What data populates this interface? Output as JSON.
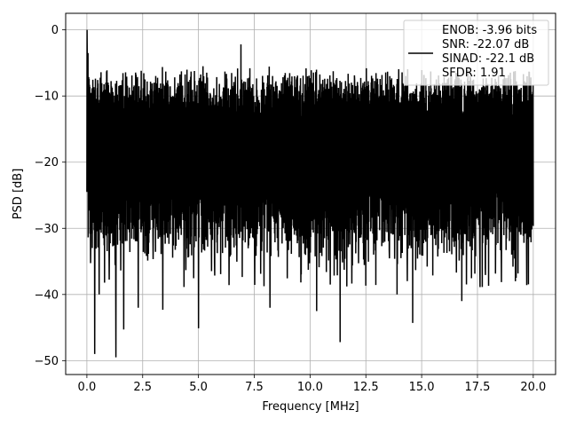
{
  "chart_data": {
    "type": "line",
    "title": "",
    "xlabel": "Frequency [MHz]",
    "ylabel": "PSD [dB]",
    "xlim": [
      -0.95,
      21.0
    ],
    "ylim": [
      -52.1,
      2.5
    ],
    "x_ticks": [
      0.0,
      2.5,
      5.0,
      7.5,
      10.0,
      12.5,
      15.0,
      17.5,
      20.0
    ],
    "x_tick_labels": [
      "0.0",
      "2.5",
      "5.0",
      "7.5",
      "10.0",
      "12.5",
      "15.0",
      "17.5",
      "20.0"
    ],
    "y_ticks": [
      0,
      -10,
      -20,
      -30,
      -40,
      -50
    ],
    "y_tick_labels": [
      "0",
      "−10",
      "−20",
      "−30",
      "−40",
      "−50"
    ],
    "grid": true,
    "legend_position": "top-right",
    "series": [
      {
        "color": "#000000",
        "x_range": [
          0.0,
          20.0
        ],
        "peak": {
          "x": 0.02,
          "y": 0.0
        },
        "band_upper_db": [
          -7,
          -13
        ],
        "band_lower_db": [
          -24,
          -33
        ],
        "notable_dips": [
          {
            "x": 0.35,
            "y": -49.0
          },
          {
            "x": 1.3,
            "y": -49.5
          },
          {
            "x": 1.65,
            "y": -45.3
          },
          {
            "x": 5.0,
            "y": -45.1
          },
          {
            "x": 11.35,
            "y": -47.2
          },
          {
            "x": 10.3,
            "y": -42.5
          },
          {
            "x": 14.6,
            "y": -44.3
          },
          {
            "x": 3.4,
            "y": -42.3
          },
          {
            "x": 0.55,
            "y": -40.0
          },
          {
            "x": 2.3,
            "y": -42.0
          },
          {
            "x": 6.9,
            "y": -40.5
          },
          {
            "x": 8.2,
            "y": -42.0
          },
          {
            "x": 16.8,
            "y": -41.0
          },
          {
            "x": 19.2,
            "y": -38.0
          },
          {
            "x": 13.9,
            "y": -40.0
          },
          {
            "x": 9.6,
            "y": -37.0
          }
        ],
        "notable_peaks": [
          {
            "x": 0.05,
            "y": -3.5
          },
          {
            "x": 6.9,
            "y": -2.2
          },
          {
            "x": 5.2,
            "y": -5.5
          },
          {
            "x": 7.3,
            "y": -5.8
          },
          {
            "x": 16.6,
            "y": -6.6
          },
          {
            "x": 15.1,
            "y": -6.8
          },
          {
            "x": 2.6,
            "y": -7.5
          },
          {
            "x": 9.3,
            "y": -7.0
          },
          {
            "x": 12.0,
            "y": -7.5
          },
          {
            "x": 18.3,
            "y": -7.4
          },
          {
            "x": 11.2,
            "y": -7.3
          },
          {
            "x": 13.6,
            "y": -7.6
          }
        ]
      }
    ],
    "legend": {
      "lines": [
        "ENOB: -3.96 bits",
        "SNR: -22.07 dB",
        "SINAD: -22.1 dB",
        "SFDR: 1.91"
      ]
    }
  }
}
